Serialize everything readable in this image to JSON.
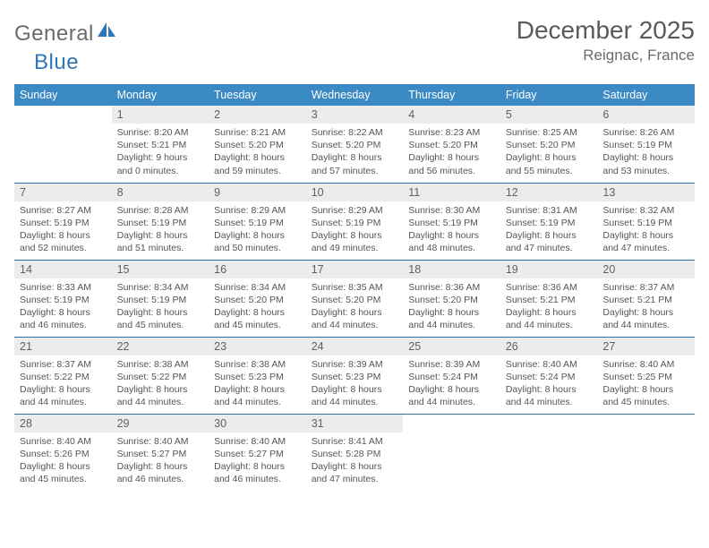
{
  "logo": {
    "general": "General",
    "blue": "Blue"
  },
  "header": {
    "title": "December 2025",
    "location": "Reignac, France"
  },
  "colors": {
    "header_bg": "#3b8ac4",
    "header_text": "#ffffff",
    "daynum_bg": "#ececec",
    "daynum_text": "#606060",
    "border": "#2f6fa8",
    "body_text": "#555555",
    "title_text": "#5a5a5a",
    "logo_blue": "#2f77b8"
  },
  "weekdays": [
    "Sunday",
    "Monday",
    "Tuesday",
    "Wednesday",
    "Thursday",
    "Friday",
    "Saturday"
  ],
  "weeks": [
    [
      null,
      {
        "n": "1",
        "sr": "Sunrise: 8:20 AM",
        "ss": "Sunset: 5:21 PM",
        "dl": "Daylight: 9 hours and 0 minutes."
      },
      {
        "n": "2",
        "sr": "Sunrise: 8:21 AM",
        "ss": "Sunset: 5:20 PM",
        "dl": "Daylight: 8 hours and 59 minutes."
      },
      {
        "n": "3",
        "sr": "Sunrise: 8:22 AM",
        "ss": "Sunset: 5:20 PM",
        "dl": "Daylight: 8 hours and 57 minutes."
      },
      {
        "n": "4",
        "sr": "Sunrise: 8:23 AM",
        "ss": "Sunset: 5:20 PM",
        "dl": "Daylight: 8 hours and 56 minutes."
      },
      {
        "n": "5",
        "sr": "Sunrise: 8:25 AM",
        "ss": "Sunset: 5:20 PM",
        "dl": "Daylight: 8 hours and 55 minutes."
      },
      {
        "n": "6",
        "sr": "Sunrise: 8:26 AM",
        "ss": "Sunset: 5:19 PM",
        "dl": "Daylight: 8 hours and 53 minutes."
      }
    ],
    [
      {
        "n": "7",
        "sr": "Sunrise: 8:27 AM",
        "ss": "Sunset: 5:19 PM",
        "dl": "Daylight: 8 hours and 52 minutes."
      },
      {
        "n": "8",
        "sr": "Sunrise: 8:28 AM",
        "ss": "Sunset: 5:19 PM",
        "dl": "Daylight: 8 hours and 51 minutes."
      },
      {
        "n": "9",
        "sr": "Sunrise: 8:29 AM",
        "ss": "Sunset: 5:19 PM",
        "dl": "Daylight: 8 hours and 50 minutes."
      },
      {
        "n": "10",
        "sr": "Sunrise: 8:29 AM",
        "ss": "Sunset: 5:19 PM",
        "dl": "Daylight: 8 hours and 49 minutes."
      },
      {
        "n": "11",
        "sr": "Sunrise: 8:30 AM",
        "ss": "Sunset: 5:19 PM",
        "dl": "Daylight: 8 hours and 48 minutes."
      },
      {
        "n": "12",
        "sr": "Sunrise: 8:31 AM",
        "ss": "Sunset: 5:19 PM",
        "dl": "Daylight: 8 hours and 47 minutes."
      },
      {
        "n": "13",
        "sr": "Sunrise: 8:32 AM",
        "ss": "Sunset: 5:19 PM",
        "dl": "Daylight: 8 hours and 47 minutes."
      }
    ],
    [
      {
        "n": "14",
        "sr": "Sunrise: 8:33 AM",
        "ss": "Sunset: 5:19 PM",
        "dl": "Daylight: 8 hours and 46 minutes."
      },
      {
        "n": "15",
        "sr": "Sunrise: 8:34 AM",
        "ss": "Sunset: 5:19 PM",
        "dl": "Daylight: 8 hours and 45 minutes."
      },
      {
        "n": "16",
        "sr": "Sunrise: 8:34 AM",
        "ss": "Sunset: 5:20 PM",
        "dl": "Daylight: 8 hours and 45 minutes."
      },
      {
        "n": "17",
        "sr": "Sunrise: 8:35 AM",
        "ss": "Sunset: 5:20 PM",
        "dl": "Daylight: 8 hours and 44 minutes."
      },
      {
        "n": "18",
        "sr": "Sunrise: 8:36 AM",
        "ss": "Sunset: 5:20 PM",
        "dl": "Daylight: 8 hours and 44 minutes."
      },
      {
        "n": "19",
        "sr": "Sunrise: 8:36 AM",
        "ss": "Sunset: 5:21 PM",
        "dl": "Daylight: 8 hours and 44 minutes."
      },
      {
        "n": "20",
        "sr": "Sunrise: 8:37 AM",
        "ss": "Sunset: 5:21 PM",
        "dl": "Daylight: 8 hours and 44 minutes."
      }
    ],
    [
      {
        "n": "21",
        "sr": "Sunrise: 8:37 AM",
        "ss": "Sunset: 5:22 PM",
        "dl": "Daylight: 8 hours and 44 minutes."
      },
      {
        "n": "22",
        "sr": "Sunrise: 8:38 AM",
        "ss": "Sunset: 5:22 PM",
        "dl": "Daylight: 8 hours and 44 minutes."
      },
      {
        "n": "23",
        "sr": "Sunrise: 8:38 AM",
        "ss": "Sunset: 5:23 PM",
        "dl": "Daylight: 8 hours and 44 minutes."
      },
      {
        "n": "24",
        "sr": "Sunrise: 8:39 AM",
        "ss": "Sunset: 5:23 PM",
        "dl": "Daylight: 8 hours and 44 minutes."
      },
      {
        "n": "25",
        "sr": "Sunrise: 8:39 AM",
        "ss": "Sunset: 5:24 PM",
        "dl": "Daylight: 8 hours and 44 minutes."
      },
      {
        "n": "26",
        "sr": "Sunrise: 8:40 AM",
        "ss": "Sunset: 5:24 PM",
        "dl": "Daylight: 8 hours and 44 minutes."
      },
      {
        "n": "27",
        "sr": "Sunrise: 8:40 AM",
        "ss": "Sunset: 5:25 PM",
        "dl": "Daylight: 8 hours and 45 minutes."
      }
    ],
    [
      {
        "n": "28",
        "sr": "Sunrise: 8:40 AM",
        "ss": "Sunset: 5:26 PM",
        "dl": "Daylight: 8 hours and 45 minutes."
      },
      {
        "n": "29",
        "sr": "Sunrise: 8:40 AM",
        "ss": "Sunset: 5:27 PM",
        "dl": "Daylight: 8 hours and 46 minutes."
      },
      {
        "n": "30",
        "sr": "Sunrise: 8:40 AM",
        "ss": "Sunset: 5:27 PM",
        "dl": "Daylight: 8 hours and 46 minutes."
      },
      {
        "n": "31",
        "sr": "Sunrise: 8:41 AM",
        "ss": "Sunset: 5:28 PM",
        "dl": "Daylight: 8 hours and 47 minutes."
      },
      null,
      null,
      null
    ]
  ]
}
